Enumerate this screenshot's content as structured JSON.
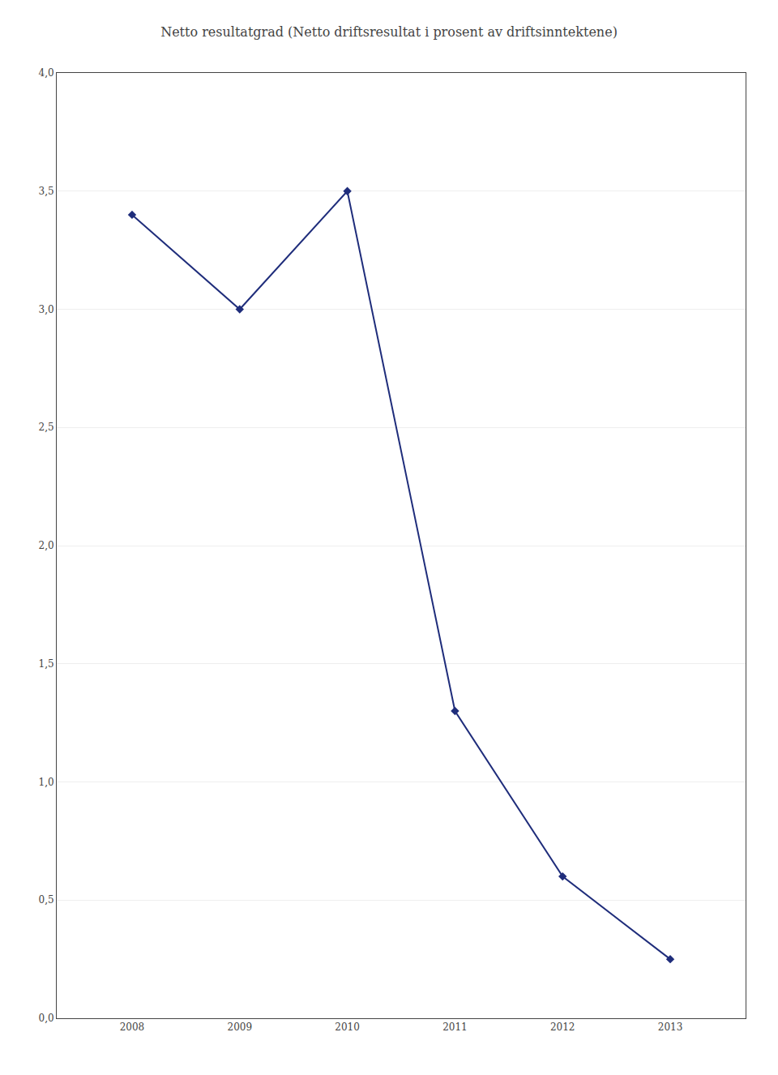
{
  "chart_data": {
    "type": "line",
    "title": "Netto resultatgrad (Netto driftsresultat i prosent av driftsinntektene)",
    "x": [
      2008,
      2009,
      2010,
      2011,
      2012,
      2013
    ],
    "values": [
      3.4,
      3.0,
      3.5,
      1.3,
      0.6,
      0.25
    ],
    "color": "#1F2D7B",
    "marker": "diamond",
    "xlim": [
      2007.3,
      2013.7
    ],
    "xticks": [
      2008,
      2009,
      2010,
      2011,
      2012,
      2013
    ],
    "ylim": [
      0.0,
      4.0
    ],
    "yticks": [
      {
        "value": 0.0,
        "label": "0,0"
      },
      {
        "value": 0.5,
        "label": "0,5"
      },
      {
        "value": 1.0,
        "label": "1,0"
      },
      {
        "value": 1.5,
        "label": "1,5"
      },
      {
        "value": 2.0,
        "label": "2,0"
      },
      {
        "value": 2.5,
        "label": "2,5"
      },
      {
        "value": 3.0,
        "label": "3,0"
      },
      {
        "value": 3.5,
        "label": "3,5"
      },
      {
        "value": 4.0,
        "label": "4,0"
      }
    ],
    "grid": true
  }
}
